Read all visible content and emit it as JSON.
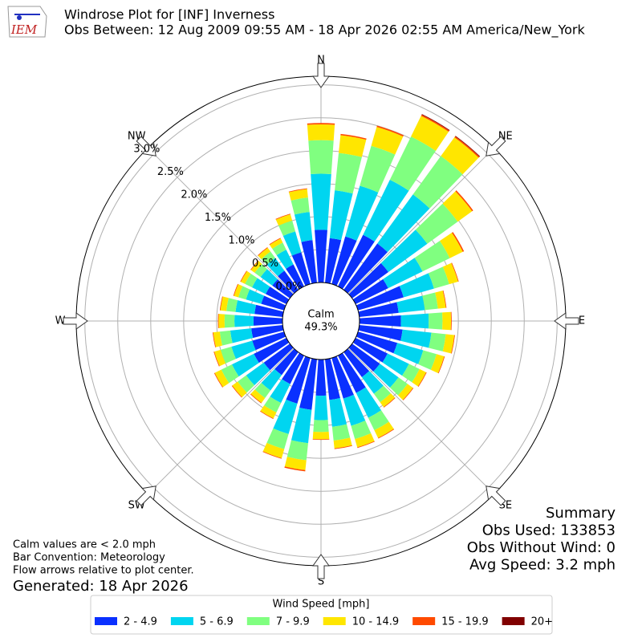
{
  "chart_data": {
    "type": "windrose",
    "title": "Windrose Plot for [INF] Inverness",
    "subtitle": "Obs Between: 12 Aug 2009 09:55 AM - 18 Apr 2026 02:55 AM America/New_York",
    "logo_text": "IEM",
    "directions": [
      "N",
      "NE",
      "E",
      "SE",
      "S",
      "SW",
      "W",
      "NW"
    ],
    "calm_label": "Calm",
    "calm_value": "49.3%",
    "rlim": [
      0,
      3.13
    ],
    "rticks": [
      {
        "value": 0,
        "label": "0.0%"
      },
      {
        "value": 0.5,
        "label": "0.5%"
      },
      {
        "value": 1,
        "label": "1.0%"
      },
      {
        "value": 1.5,
        "label": "1.5%"
      },
      {
        "value": 2,
        "label": "2.0%"
      },
      {
        "value": 2.5,
        "label": "2.5%"
      },
      {
        "value": 3,
        "label": "3.0%"
      }
    ],
    "grid": true,
    "x": [
      0,
      10,
      20,
      30,
      40,
      50,
      60,
      70,
      80,
      90,
      100,
      110,
      120,
      130,
      140,
      150,
      160,
      170,
      180,
      190,
      200,
      210,
      220,
      230,
      240,
      250,
      260,
      270,
      280,
      290,
      300,
      310,
      320,
      330,
      340,
      350
    ],
    "legend_title": "Wind Speed [mph]",
    "series": [
      {
        "name": "2 - 4.9",
        "color": "#0a30ff",
        "values": [
          0.8,
          0.68,
          0.75,
          0.87,
          0.87,
          0.68,
          0.55,
          0.72,
          0.6,
          0.63,
          0.66,
          0.62,
          0.54,
          0.52,
          0.47,
          0.63,
          0.64,
          0.62,
          0.55,
          0.77,
          0.72,
          0.48,
          0.43,
          0.49,
          0.55,
          0.5,
          0.48,
          0.44,
          0.43,
          0.36,
          0.35,
          0.33,
          0.36,
          0.37,
          0.5,
          0.65
        ]
      },
      {
        "name": "5 - 6.9",
        "color": "#00d5f0",
        "values": [
          0.85,
          0.73,
          0.8,
          0.93,
          0.92,
          0.73,
          0.58,
          0.48,
          0.4,
          0.42,
          0.44,
          0.41,
          0.36,
          0.35,
          0.31,
          0.42,
          0.43,
          0.41,
          0.37,
          0.51,
          0.48,
          0.32,
          0.29,
          0.33,
          0.37,
          0.33,
          0.32,
          0.29,
          0.29,
          0.24,
          0.23,
          0.22,
          0.24,
          0.25,
          0.33,
          0.43
        ]
      },
      {
        "name": "7 - 9.9",
        "color": "#80ff80",
        "values": [
          0.51,
          0.57,
          0.63,
          0.73,
          0.72,
          0.57,
          0.46,
          0.24,
          0.2,
          0.21,
          0.22,
          0.21,
          0.18,
          0.17,
          0.16,
          0.21,
          0.21,
          0.21,
          0.18,
          0.26,
          0.24,
          0.16,
          0.14,
          0.16,
          0.18,
          0.17,
          0.16,
          0.15,
          0.14,
          0.12,
          0.12,
          0.11,
          0.12,
          0.12,
          0.17,
          0.22
        ]
      },
      {
        "name": "10 - 14.9",
        "color": "#ffe600",
        "values": [
          0.24,
          0.27,
          0.3,
          0.35,
          0.35,
          0.27,
          0.22,
          0.14,
          0.12,
          0.13,
          0.13,
          0.12,
          0.11,
          0.1,
          0.09,
          0.13,
          0.13,
          0.12,
          0.11,
          0.15,
          0.14,
          0.1,
          0.09,
          0.1,
          0.11,
          0.1,
          0.1,
          0.09,
          0.09,
          0.07,
          0.07,
          0.07,
          0.07,
          0.07,
          0.1,
          0.13
        ]
      },
      {
        "name": "15 - 19.9",
        "color": "#ff4a00",
        "values": [
          0.02,
          0.02,
          0.02,
          0.02,
          0.02,
          0.02,
          0.02,
          0.01,
          0.01,
          0.01,
          0.01,
          0.01,
          0.01,
          0.01,
          0.01,
          0.01,
          0.01,
          0.01,
          0.01,
          0.02,
          0.01,
          0.01,
          0.01,
          0.01,
          0.01,
          0.01,
          0.01,
          0.01,
          0.01,
          0.01,
          0.01,
          0.01,
          0.01,
          0.01,
          0.01,
          0.01
        ]
      },
      {
        "name": "20+",
        "color": "#800000",
        "values": [
          0,
          0,
          0,
          0.01,
          0.01,
          0,
          0,
          0,
          0,
          0,
          0,
          0,
          0,
          0,
          0,
          0,
          0,
          0,
          0,
          0,
          0,
          0,
          0,
          0,
          0,
          0,
          0,
          0,
          0,
          0,
          0,
          0,
          0,
          0,
          0,
          0
        ]
      }
    ],
    "summary": [
      "Summary",
      "Obs Used: 133853",
      "Obs Without Wind: 0",
      "Avg Speed: 3.2 mph"
    ],
    "notes": [
      "Calm values are < 2.0 mph",
      "Bar Convention: Meteorology",
      "Flow arrows relative to plot center."
    ],
    "generated": "Generated: 18 Apr 2026"
  }
}
